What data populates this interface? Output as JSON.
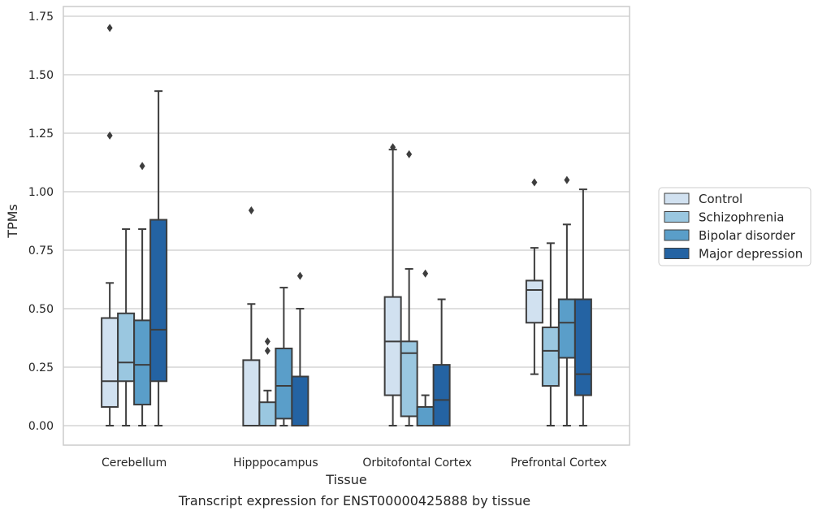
{
  "chart_data": {
    "type": "box",
    "title": "",
    "caption": "Transcript expression for ENST00000425888 by tissue",
    "xlabel": "Tissue",
    "ylabel": "TPMs",
    "ylim": [
      -0.08,
      1.78
    ],
    "yticks": [
      0.0,
      0.25,
      0.5,
      0.75,
      1.0,
      1.25,
      1.5,
      1.75
    ],
    "ytick_labels": [
      "0.00",
      "0.25",
      "0.50",
      "0.75",
      "1.00",
      "1.25",
      "1.50",
      "1.75"
    ],
    "grid": true,
    "legend_position": "right",
    "categories": [
      "Cerebellum",
      "Hipppocampus",
      "Orbitofontal Cortex",
      "Prefrontal Cortex"
    ],
    "series": [
      {
        "name": "Control",
        "color": "#d1e1f0",
        "boxes": [
          {
            "whislo": 0.0,
            "q1": 0.08,
            "med": 0.19,
            "q3": 0.46,
            "whishi": 0.61,
            "fliers": [
              1.24,
              1.7
            ]
          },
          {
            "whislo": 0.0,
            "q1": 0.0,
            "med": 0.0,
            "q3": 0.28,
            "whishi": 0.52,
            "fliers": [
              0.92
            ]
          },
          {
            "whislo": 0.0,
            "q1": 0.13,
            "med": 0.36,
            "q3": 0.55,
            "whishi": 1.18,
            "fliers": [
              1.19
            ]
          },
          {
            "whislo": 0.22,
            "q1": 0.44,
            "med": 0.58,
            "q3": 0.62,
            "whishi": 0.76,
            "fliers": [
              1.04
            ]
          }
        ]
      },
      {
        "name": "Schizophrenia",
        "color": "#9ac7e0",
        "boxes": [
          {
            "whislo": 0.0,
            "q1": 0.19,
            "med": 0.27,
            "q3": 0.48,
            "whishi": 0.84,
            "fliers": []
          },
          {
            "whislo": 0.0,
            "q1": 0.0,
            "med": 0.0,
            "q3": 0.1,
            "whishi": 0.15,
            "fliers": [
              0.32,
              0.36
            ]
          },
          {
            "whislo": 0.0,
            "q1": 0.04,
            "med": 0.31,
            "q3": 0.36,
            "whishi": 0.67,
            "fliers": [
              1.16
            ]
          },
          {
            "whislo": 0.0,
            "q1": 0.17,
            "med": 0.32,
            "q3": 0.42,
            "whishi": 0.78,
            "fliers": []
          }
        ]
      },
      {
        "name": "Bipolar disorder",
        "color": "#5a9ec9",
        "boxes": [
          {
            "whislo": 0.0,
            "q1": 0.09,
            "med": 0.26,
            "q3": 0.45,
            "whishi": 0.84,
            "fliers": [
              1.11
            ]
          },
          {
            "whislo": 0.0,
            "q1": 0.03,
            "med": 0.17,
            "q3": 0.33,
            "whishi": 0.59,
            "fliers": []
          },
          {
            "whislo": 0.0,
            "q1": 0.0,
            "med": 0.0,
            "q3": 0.08,
            "whishi": 0.13,
            "fliers": [
              0.65
            ]
          },
          {
            "whislo": 0.0,
            "q1": 0.29,
            "med": 0.44,
            "q3": 0.54,
            "whishi": 0.86,
            "fliers": [
              1.05
            ]
          }
        ]
      },
      {
        "name": "Major depression",
        "color": "#2463a3",
        "boxes": [
          {
            "whislo": 0.0,
            "q1": 0.19,
            "med": 0.41,
            "q3": 0.88,
            "whishi": 1.43,
            "fliers": []
          },
          {
            "whislo": 0.0,
            "q1": 0.0,
            "med": 0.0,
            "q3": 0.21,
            "whishi": 0.5,
            "fliers": [
              0.64
            ]
          },
          {
            "whislo": 0.0,
            "q1": 0.0,
            "med": 0.11,
            "q3": 0.26,
            "whishi": 0.54,
            "fliers": []
          },
          {
            "whislo": 0.0,
            "q1": 0.13,
            "med": 0.22,
            "q3": 0.54,
            "whishi": 1.01,
            "fliers": []
          }
        ]
      }
    ]
  }
}
